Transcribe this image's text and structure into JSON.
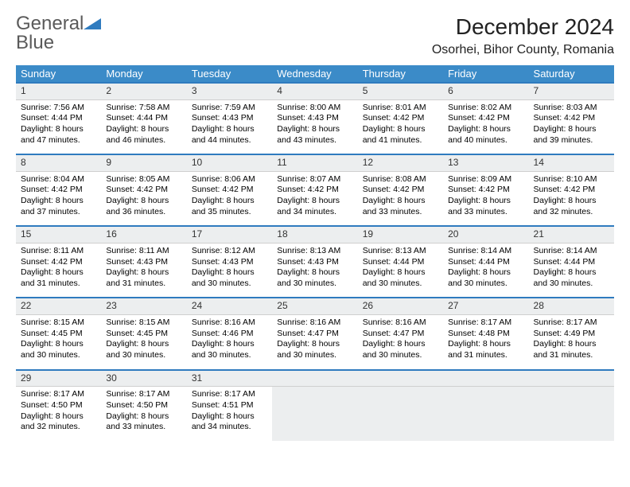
{
  "logo": {
    "text1": "General",
    "text2": "Blue"
  },
  "title": "December 2024",
  "location": "Osorhei, Bihor County, Romania",
  "colors": {
    "header_bg": "#3b8bc8",
    "header_text": "#ffffff",
    "accent_border": "#2f7bbf",
    "daynum_bg": "#eceeef",
    "body_text": "#000000"
  },
  "weekdays": [
    "Sunday",
    "Monday",
    "Tuesday",
    "Wednesday",
    "Thursday",
    "Friday",
    "Saturday"
  ],
  "weeks": [
    {
      "nums": [
        "1",
        "2",
        "3",
        "4",
        "5",
        "6",
        "7"
      ],
      "cells": [
        {
          "sunrise": "Sunrise: 7:56 AM",
          "sunset": "Sunset: 4:44 PM",
          "day1": "Daylight: 8 hours",
          "day2": "and 47 minutes."
        },
        {
          "sunrise": "Sunrise: 7:58 AM",
          "sunset": "Sunset: 4:44 PM",
          "day1": "Daylight: 8 hours",
          "day2": "and 46 minutes."
        },
        {
          "sunrise": "Sunrise: 7:59 AM",
          "sunset": "Sunset: 4:43 PM",
          "day1": "Daylight: 8 hours",
          "day2": "and 44 minutes."
        },
        {
          "sunrise": "Sunrise: 8:00 AM",
          "sunset": "Sunset: 4:43 PM",
          "day1": "Daylight: 8 hours",
          "day2": "and 43 minutes."
        },
        {
          "sunrise": "Sunrise: 8:01 AM",
          "sunset": "Sunset: 4:42 PM",
          "day1": "Daylight: 8 hours",
          "day2": "and 41 minutes."
        },
        {
          "sunrise": "Sunrise: 8:02 AM",
          "sunset": "Sunset: 4:42 PM",
          "day1": "Daylight: 8 hours",
          "day2": "and 40 minutes."
        },
        {
          "sunrise": "Sunrise: 8:03 AM",
          "sunset": "Sunset: 4:42 PM",
          "day1": "Daylight: 8 hours",
          "day2": "and 39 minutes."
        }
      ]
    },
    {
      "nums": [
        "8",
        "9",
        "10",
        "11",
        "12",
        "13",
        "14"
      ],
      "cells": [
        {
          "sunrise": "Sunrise: 8:04 AM",
          "sunset": "Sunset: 4:42 PM",
          "day1": "Daylight: 8 hours",
          "day2": "and 37 minutes."
        },
        {
          "sunrise": "Sunrise: 8:05 AM",
          "sunset": "Sunset: 4:42 PM",
          "day1": "Daylight: 8 hours",
          "day2": "and 36 minutes."
        },
        {
          "sunrise": "Sunrise: 8:06 AM",
          "sunset": "Sunset: 4:42 PM",
          "day1": "Daylight: 8 hours",
          "day2": "and 35 minutes."
        },
        {
          "sunrise": "Sunrise: 8:07 AM",
          "sunset": "Sunset: 4:42 PM",
          "day1": "Daylight: 8 hours",
          "day2": "and 34 minutes."
        },
        {
          "sunrise": "Sunrise: 8:08 AM",
          "sunset": "Sunset: 4:42 PM",
          "day1": "Daylight: 8 hours",
          "day2": "and 33 minutes."
        },
        {
          "sunrise": "Sunrise: 8:09 AM",
          "sunset": "Sunset: 4:42 PM",
          "day1": "Daylight: 8 hours",
          "day2": "and 33 minutes."
        },
        {
          "sunrise": "Sunrise: 8:10 AM",
          "sunset": "Sunset: 4:42 PM",
          "day1": "Daylight: 8 hours",
          "day2": "and 32 minutes."
        }
      ]
    },
    {
      "nums": [
        "15",
        "16",
        "17",
        "18",
        "19",
        "20",
        "21"
      ],
      "cells": [
        {
          "sunrise": "Sunrise: 8:11 AM",
          "sunset": "Sunset: 4:42 PM",
          "day1": "Daylight: 8 hours",
          "day2": "and 31 minutes."
        },
        {
          "sunrise": "Sunrise: 8:11 AM",
          "sunset": "Sunset: 4:43 PM",
          "day1": "Daylight: 8 hours",
          "day2": "and 31 minutes."
        },
        {
          "sunrise": "Sunrise: 8:12 AM",
          "sunset": "Sunset: 4:43 PM",
          "day1": "Daylight: 8 hours",
          "day2": "and 30 minutes."
        },
        {
          "sunrise": "Sunrise: 8:13 AM",
          "sunset": "Sunset: 4:43 PM",
          "day1": "Daylight: 8 hours",
          "day2": "and 30 minutes."
        },
        {
          "sunrise": "Sunrise: 8:13 AM",
          "sunset": "Sunset: 4:44 PM",
          "day1": "Daylight: 8 hours",
          "day2": "and 30 minutes."
        },
        {
          "sunrise": "Sunrise: 8:14 AM",
          "sunset": "Sunset: 4:44 PM",
          "day1": "Daylight: 8 hours",
          "day2": "and 30 minutes."
        },
        {
          "sunrise": "Sunrise: 8:14 AM",
          "sunset": "Sunset: 4:44 PM",
          "day1": "Daylight: 8 hours",
          "day2": "and 30 minutes."
        }
      ]
    },
    {
      "nums": [
        "22",
        "23",
        "24",
        "25",
        "26",
        "27",
        "28"
      ],
      "cells": [
        {
          "sunrise": "Sunrise: 8:15 AM",
          "sunset": "Sunset: 4:45 PM",
          "day1": "Daylight: 8 hours",
          "day2": "and 30 minutes."
        },
        {
          "sunrise": "Sunrise: 8:15 AM",
          "sunset": "Sunset: 4:45 PM",
          "day1": "Daylight: 8 hours",
          "day2": "and 30 minutes."
        },
        {
          "sunrise": "Sunrise: 8:16 AM",
          "sunset": "Sunset: 4:46 PM",
          "day1": "Daylight: 8 hours",
          "day2": "and 30 minutes."
        },
        {
          "sunrise": "Sunrise: 8:16 AM",
          "sunset": "Sunset: 4:47 PM",
          "day1": "Daylight: 8 hours",
          "day2": "and 30 minutes."
        },
        {
          "sunrise": "Sunrise: 8:16 AM",
          "sunset": "Sunset: 4:47 PM",
          "day1": "Daylight: 8 hours",
          "day2": "and 30 minutes."
        },
        {
          "sunrise": "Sunrise: 8:17 AM",
          "sunset": "Sunset: 4:48 PM",
          "day1": "Daylight: 8 hours",
          "day2": "and 31 minutes."
        },
        {
          "sunrise": "Sunrise: 8:17 AM",
          "sunset": "Sunset: 4:49 PM",
          "day1": "Daylight: 8 hours",
          "day2": "and 31 minutes."
        }
      ]
    },
    {
      "nums": [
        "29",
        "30",
        "31",
        "",
        "",
        "",
        ""
      ],
      "cells": [
        {
          "sunrise": "Sunrise: 8:17 AM",
          "sunset": "Sunset: 4:50 PM",
          "day1": "Daylight: 8 hours",
          "day2": "and 32 minutes."
        },
        {
          "sunrise": "Sunrise: 8:17 AM",
          "sunset": "Sunset: 4:50 PM",
          "day1": "Daylight: 8 hours",
          "day2": "and 33 minutes."
        },
        {
          "sunrise": "Sunrise: 8:17 AM",
          "sunset": "Sunset: 4:51 PM",
          "day1": "Daylight: 8 hours",
          "day2": "and 34 minutes."
        },
        null,
        null,
        null,
        null
      ]
    }
  ]
}
